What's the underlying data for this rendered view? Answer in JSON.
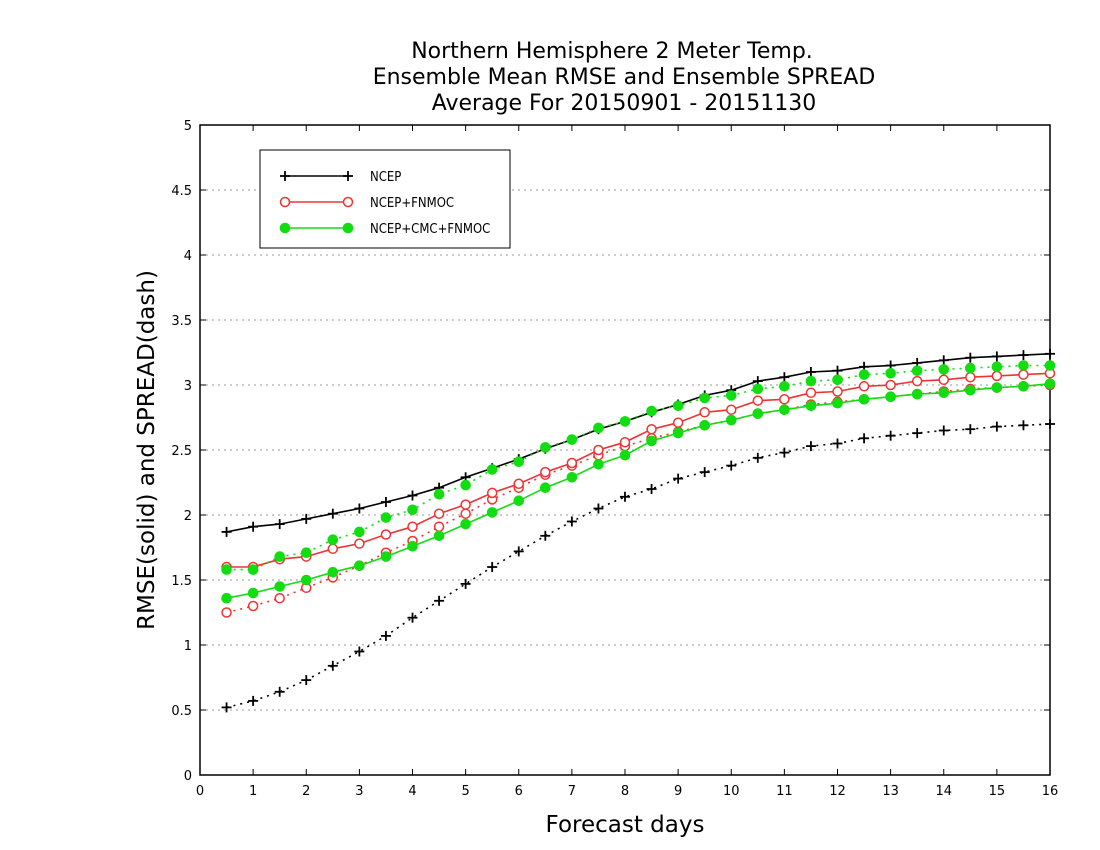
{
  "chart_data": {
    "type": "line",
    "title": [
      "Northern Hemisphere 2 Meter Temp.",
      "Ensemble Mean RMSE and Ensemble SPREAD",
      "Average For 20150901 - 20151130"
    ],
    "xlabel": "Forecast days",
    "ylabel": "RMSE(solid) and SPREAD(dash)",
    "xlim": [
      0,
      16
    ],
    "ylim": [
      0,
      5
    ],
    "xticks": [
      0,
      1,
      2,
      3,
      4,
      5,
      6,
      7,
      8,
      9,
      10,
      11,
      12,
      13,
      14,
      15,
      16
    ],
    "yticks": [
      0,
      0.5,
      1,
      1.5,
      2,
      2.5,
      3,
      3.5,
      4,
      4.5,
      5
    ],
    "ytick_labels": [
      "0",
      "0.5",
      "1",
      "1.5",
      "2",
      "2.5",
      "3",
      "3.5",
      "4",
      "4.5",
      "5"
    ],
    "grid": "horizontal-dotted",
    "legend_position": "top-left",
    "x": [
      0.5,
      1,
      1.5,
      2,
      2.5,
      3,
      3.5,
      4,
      4.5,
      5,
      5.5,
      6,
      6.5,
      7,
      7.5,
      8,
      8.5,
      9,
      9.5,
      10,
      10.5,
      11,
      11.5,
      12,
      12.5,
      13,
      13.5,
      14,
      14.5,
      15,
      15.5,
      16
    ],
    "series": [
      {
        "name": "NCEP",
        "color": "#000000",
        "marker": "plus",
        "rmse": [
          1.87,
          1.91,
          1.93,
          1.97,
          2.01,
          2.05,
          2.1,
          2.15,
          2.21,
          2.29,
          2.36,
          2.43,
          2.51,
          2.58,
          2.66,
          2.72,
          2.79,
          2.85,
          2.92,
          2.96,
          3.03,
          3.06,
          3.1,
          3.11,
          3.14,
          3.15,
          3.17,
          3.19,
          3.21,
          3.22,
          3.23,
          3.24
        ],
        "spread": [
          0.52,
          0.57,
          0.64,
          0.73,
          0.84,
          0.95,
          1.07,
          1.21,
          1.34,
          1.47,
          1.6,
          1.72,
          1.84,
          1.95,
          2.05,
          2.14,
          2.2,
          2.28,
          2.33,
          2.38,
          2.44,
          2.48,
          2.53,
          2.55,
          2.59,
          2.61,
          2.63,
          2.65,
          2.66,
          2.68,
          2.69,
          2.7
        ]
      },
      {
        "name": "NCEP+FNMOC",
        "color": "#ee3333",
        "marker": "open-circle",
        "rmse": [
          1.6,
          1.6,
          1.66,
          1.68,
          1.74,
          1.78,
          1.85,
          1.91,
          2.01,
          2.08,
          2.17,
          2.24,
          2.33,
          2.4,
          2.5,
          2.56,
          2.66,
          2.71,
          2.79,
          2.81,
          2.88,
          2.89,
          2.94,
          2.95,
          2.99,
          3.0,
          3.03,
          3.04,
          3.06,
          3.07,
          3.08,
          3.09
        ],
        "spread": [
          1.25,
          1.3,
          1.36,
          1.44,
          1.52,
          1.61,
          1.71,
          1.8,
          1.91,
          2.01,
          2.12,
          2.21,
          2.31,
          2.38,
          2.46,
          2.53,
          2.59,
          2.64,
          2.69,
          2.73,
          2.78,
          2.81,
          2.85,
          2.87,
          2.89,
          2.91,
          2.93,
          2.95,
          2.97,
          2.98,
          2.99,
          3.0
        ]
      },
      {
        "name": "NCEP+CMC+FNMOC",
        "color": "#11dd11",
        "marker": "filled-circle",
        "rmse": [
          1.36,
          1.4,
          1.45,
          1.5,
          1.56,
          1.61,
          1.68,
          1.76,
          1.84,
          1.93,
          2.02,
          2.11,
          2.21,
          2.29,
          2.39,
          2.46,
          2.57,
          2.63,
          2.69,
          2.73,
          2.78,
          2.81,
          2.84,
          2.86,
          2.89,
          2.91,
          2.93,
          2.94,
          2.96,
          2.98,
          2.99,
          3.01
        ],
        "spread": [
          1.58,
          1.58,
          1.68,
          1.71,
          1.81,
          1.87,
          1.98,
          2.04,
          2.16,
          2.23,
          2.35,
          2.41,
          2.52,
          2.58,
          2.67,
          2.72,
          2.8,
          2.84,
          2.9,
          2.92,
          2.97,
          2.99,
          3.03,
          3.04,
          3.08,
          3.09,
          3.11,
          3.12,
          3.13,
          3.14,
          3.15,
          3.15
        ]
      }
    ]
  }
}
